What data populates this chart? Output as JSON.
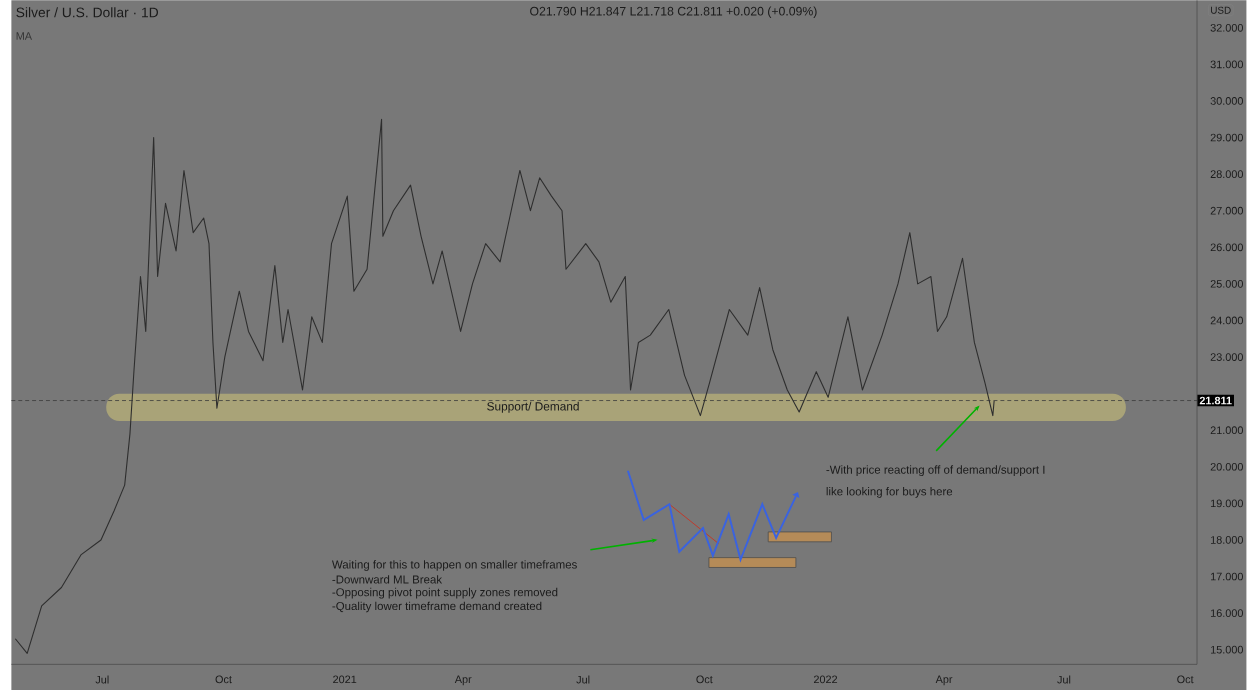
{
  "chart_data": {
    "type": "line",
    "title": "Silver / U.S. Dollar · 1D",
    "subtitle": "O21.790 H21.847 L21.718 C21.811 +0.020 (+0.09%)",
    "x": [
      "2020-04-26",
      "2020-05-05",
      "2020-05-16",
      "2020-05-31",
      "2020-06-15",
      "2020-06-30",
      "2020-07-10",
      "2020-07-18",
      "2020-07-22",
      "2020-07-25",
      "2020-07-30",
      "2020-08-03",
      "2020-08-09",
      "2020-08-12",
      "2020-08-18",
      "2020-08-26",
      "2020-09-01",
      "2020-09-08",
      "2020-09-16",
      "2020-09-20",
      "2020-09-23",
      "2020-09-26",
      "2020-10-02",
      "2020-10-13",
      "2020-10-20",
      "2020-10-31",
      "2020-11-09",
      "2020-11-15",
      "2020-11-19",
      "2020-11-30",
      "2020-12-07",
      "2020-12-15",
      "2020-12-22",
      "2021-01-03",
      "2021-01-08",
      "2021-01-18",
      "2021-01-29",
      "2021-01-30",
      "2021-02-07",
      "2021-02-20",
      "2021-02-28",
      "2021-03-09",
      "2021-03-16",
      "2021-03-30",
      "2021-04-08",
      "2021-04-18",
      "2021-04-29",
      "2021-05-14",
      "2021-05-22",
      "2021-05-29",
      "2021-06-07",
      "2021-06-15",
      "2021-06-18",
      "2021-07-03",
      "2021-07-13",
      "2021-07-22",
      "2021-08-02",
      "2021-08-06",
      "2021-08-12",
      "2021-08-21",
      "2021-09-04",
      "2021-09-16",
      "2021-09-28",
      "2021-10-05",
      "2021-10-20",
      "2021-11-03",
      "2021-11-12",
      "2021-11-22",
      "2021-12-03",
      "2021-12-12",
      "2021-12-25",
      "2022-01-03",
      "2022-01-18",
      "2022-01-29",
      "2022-02-13",
      "2022-02-25",
      "2022-03-06",
      "2022-03-12",
      "2022-03-22",
      "2022-03-27",
      "2022-04-03",
      "2022-04-15",
      "2022-04-24",
      "2022-05-02",
      "2022-05-08",
      "2022-05-09"
    ],
    "series": [
      {
        "color": "#2e2e2e",
        "values": [
          15.3,
          14.9,
          16.2,
          16.7,
          17.6,
          18.0,
          18.8,
          19.5,
          20.9,
          22.6,
          25.2,
          23.7,
          29.0,
          25.2,
          27.2,
          25.9,
          28.1,
          26.4,
          26.8,
          26.1,
          23.4,
          21.6,
          23.0,
          24.8,
          23.7,
          22.9,
          25.5,
          23.4,
          24.3,
          22.1,
          24.1,
          23.4,
          26.1,
          27.4,
          24.8,
          25.4,
          29.5,
          26.3,
          27.0,
          27.7,
          26.3,
          25.0,
          25.9,
          23.7,
          25.0,
          26.1,
          25.6,
          28.1,
          27.0,
          27.9,
          27.4,
          27.0,
          25.4,
          26.1,
          25.6,
          24.5,
          25.2,
          22.1,
          23.4,
          23.6,
          24.3,
          22.5,
          21.4,
          22.3,
          24.3,
          23.6,
          24.9,
          23.2,
          22.1,
          21.5,
          22.6,
          21.9,
          24.1,
          22.1,
          23.6,
          25.0,
          26.4,
          25.0,
          25.2,
          23.7,
          24.1,
          25.7,
          23.4,
          22.3,
          21.4,
          21.8
        ]
      }
    ],
    "xlim": [
      "2020-04-23",
      "2022-10-10"
    ],
    "xticks": [
      {
        "value": "2020-07-01",
        "label": "Jul"
      },
      {
        "value": "2020-10-01",
        "label": "Oct"
      },
      {
        "value": "2021-01-01",
        "label": "2021"
      },
      {
        "value": "2021-04-01",
        "label": "Apr"
      },
      {
        "value": "2021-07-01",
        "label": "Jul"
      },
      {
        "value": "2021-10-01",
        "label": "Oct"
      },
      {
        "value": "2022-01-01",
        "label": "2022"
      },
      {
        "value": "2022-04-01",
        "label": "Apr"
      },
      {
        "value": "2022-07-01",
        "label": "Jul"
      },
      {
        "value": "2022-10-01",
        "label": "Oct"
      }
    ],
    "ylim": [
      14.6,
      32.75
    ],
    "yticks": [
      {
        "value": 15,
        "label": "15.000"
      },
      {
        "value": 16,
        "label": "16.000"
      },
      {
        "value": 17,
        "label": "17.000"
      },
      {
        "value": 18,
        "label": "18.000"
      },
      {
        "value": 19,
        "label": "19.000"
      },
      {
        "value": 20,
        "label": "20.000"
      },
      {
        "value": 21,
        "label": "21.000"
      },
      {
        "value": 23,
        "label": "23.000"
      },
      {
        "value": 24,
        "label": "24.000"
      },
      {
        "value": 25,
        "label": "25.000"
      },
      {
        "value": 26,
        "label": "26.000"
      },
      {
        "value": 27,
        "label": "27.000"
      },
      {
        "value": 28,
        "label": "28.000"
      },
      {
        "value": 29,
        "label": "29.000"
      },
      {
        "value": 30,
        "label": "30.000"
      },
      {
        "value": 31,
        "label": "31.000"
      },
      {
        "value": 32,
        "label": "32.000"
      }
    ],
    "ref_lines": [
      {
        "axis": "y",
        "value": 21.811,
        "label": "21.811",
        "color": "#3a3a3a",
        "line_style": "dashed"
      }
    ],
    "bands": [
      {
        "axis": "y",
        "from": 21.25,
        "to": 22.0,
        "label": "Support/ Demand",
        "color": "#a9a378"
      }
    ],
    "annotations": [
      "MA",
      "USD",
      "-With price reacting off of demand/support I",
      "like looking for buys here",
      "Waiting for this to happen on smaller timeframes",
      "-Downward ML Break",
      "-Opposing pivot point supply zones removed",
      "-Quality lower timeframe demand created"
    ],
    "grid": false,
    "marker": "none",
    "line_style": "solid"
  }
}
